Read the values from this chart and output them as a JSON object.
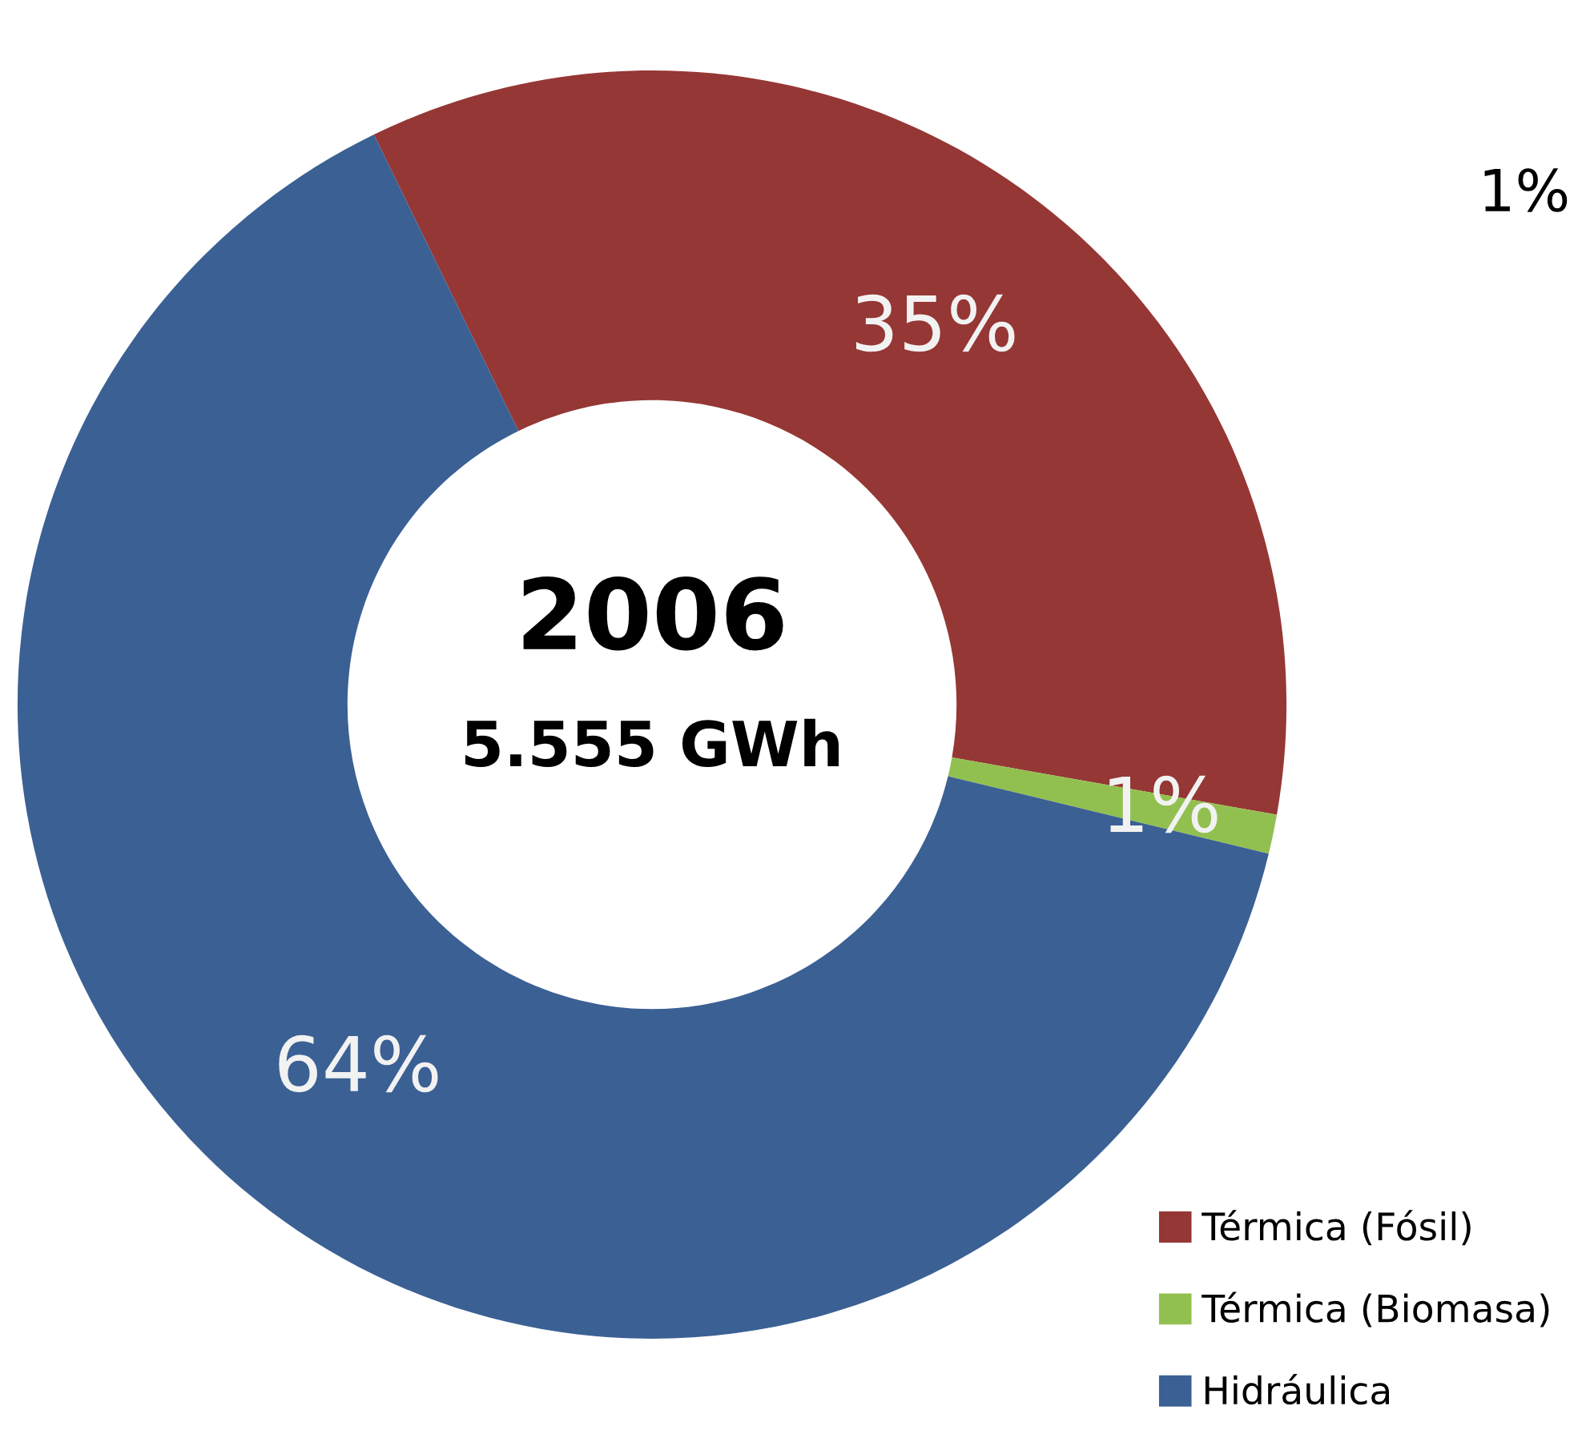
{
  "chart_data": {
    "type": "donut",
    "title": "2006",
    "subtitle": "5.555 GWh",
    "categories": [
      "Térmica (Fósil)",
      "Térmica (Biomasa)",
      "Hidráulica"
    ],
    "values": [
      35,
      1,
      64
    ],
    "colors": [
      "#953735",
      "#92c050",
      "#3b6094"
    ],
    "value_labels": [
      "35%",
      "1%",
      "64%"
    ],
    "legend": "bottom right",
    "annotations": [
      "1%"
    ]
  }
}
